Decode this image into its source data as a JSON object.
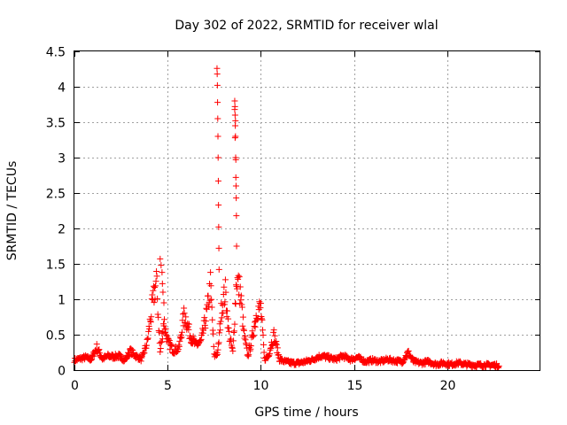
{
  "chart_data": {
    "type": "scatter",
    "title": "Day 302 of 2022, SRMTID for receiver wlal",
    "xlabel": "GPS time / hours",
    "ylabel": "SRMTID / TECUs",
    "xlim": [
      0,
      25
    ],
    "ylim": [
      0,
      4.5
    ],
    "xticks": [
      0,
      5,
      10,
      15,
      20
    ],
    "yticks": [
      0,
      0.5,
      1,
      1.5,
      2,
      2.5,
      3,
      3.5,
      4,
      4.5
    ],
    "ytick_labels": [
      "0",
      "0.5",
      "1",
      "1.5",
      "2",
      "2.5",
      "3",
      "3.5",
      "4",
      "4.5"
    ],
    "xtick_labels": [
      "0",
      "5",
      "10",
      "15",
      "20"
    ],
    "grid": true,
    "marker": "+",
    "color": "#ff0000",
    "profile": [
      [
        0.0,
        0.14
      ],
      [
        0.3,
        0.16
      ],
      [
        0.6,
        0.18
      ],
      [
        0.9,
        0.15
      ],
      [
        1.2,
        0.32
      ],
      [
        1.5,
        0.16
      ],
      [
        1.8,
        0.2
      ],
      [
        2.1,
        0.19
      ],
      [
        2.4,
        0.2
      ],
      [
        2.7,
        0.14
      ],
      [
        3.0,
        0.27
      ],
      [
        3.3,
        0.2
      ],
      [
        3.6,
        0.15
      ],
      [
        3.9,
        0.38
      ],
      [
        4.2,
        0.95
      ],
      [
        4.4,
        1.27
      ],
      [
        4.6,
        0.25
      ],
      [
        4.8,
        0.7
      ],
      [
        5.0,
        0.4
      ],
      [
        5.3,
        0.28
      ],
      [
        5.6,
        0.3
      ],
      [
        5.9,
        0.8
      ],
      [
        6.2,
        0.5
      ],
      [
        6.5,
        0.35
      ],
      [
        6.8,
        0.4
      ],
      [
        7.1,
        0.8
      ],
      [
        7.3,
        1.2
      ],
      [
        7.5,
        0.2
      ],
      [
        7.7,
        0.25
      ],
      [
        7.9,
        0.9
      ],
      [
        8.1,
        1.1
      ],
      [
        8.3,
        0.5
      ],
      [
        8.5,
        0.25
      ],
      [
        8.7,
        1.3
      ],
      [
        8.9,
        1.1
      ],
      [
        9.1,
        0.5
      ],
      [
        9.3,
        0.2
      ],
      [
        9.5,
        0.4
      ],
      [
        9.8,
        0.85
      ],
      [
        10.0,
        0.88
      ],
      [
        10.2,
        0.15
      ],
      [
        10.4,
        0.2
      ],
      [
        10.7,
        0.5
      ],
      [
        11.0,
        0.15
      ],
      [
        11.3,
        0.12
      ],
      [
        11.7,
        0.1
      ],
      [
        12.0,
        0.1
      ],
      [
        12.4,
        0.12
      ],
      [
        12.8,
        0.15
      ],
      [
        13.2,
        0.2
      ],
      [
        13.6,
        0.18
      ],
      [
        14.0,
        0.15
      ],
      [
        14.4,
        0.2
      ],
      [
        14.8,
        0.15
      ],
      [
        15.2,
        0.18
      ],
      [
        15.6,
        0.12
      ],
      [
        16.0,
        0.14
      ],
      [
        16.4,
        0.12
      ],
      [
        16.8,
        0.15
      ],
      [
        17.2,
        0.13
      ],
      [
        17.6,
        0.12
      ],
      [
        17.9,
        0.25
      ],
      [
        18.2,
        0.12
      ],
      [
        18.6,
        0.1
      ],
      [
        19.0,
        0.12
      ],
      [
        19.4,
        0.08
      ],
      [
        19.8,
        0.1
      ],
      [
        20.2,
        0.08
      ],
      [
        20.6,
        0.1
      ],
      [
        21.0,
        0.08
      ],
      [
        21.5,
        0.07
      ],
      [
        22.0,
        0.07
      ],
      [
        22.4,
        0.07
      ],
      [
        22.8,
        0.06
      ]
    ],
    "spikes": [
      [
        4.6,
        1.57
      ],
      [
        4.65,
        1.48
      ],
      [
        4.7,
        1.38
      ],
      [
        4.72,
        1.22
      ],
      [
        4.75,
        1.1
      ],
      [
        4.8,
        0.95
      ],
      [
        7.65,
        4.26
      ],
      [
        7.66,
        4.18
      ],
      [
        7.67,
        4.02
      ],
      [
        7.68,
        3.78
      ],
      [
        7.69,
        3.55
      ],
      [
        7.7,
        3.3
      ],
      [
        7.71,
        3.0
      ],
      [
        7.72,
        2.67
      ],
      [
        7.73,
        2.33
      ],
      [
        7.74,
        2.02
      ],
      [
        7.75,
        1.72
      ],
      [
        7.76,
        1.42
      ],
      [
        8.6,
        3.8
      ],
      [
        8.61,
        3.72
      ],
      [
        8.62,
        3.6
      ],
      [
        8.63,
        3.45
      ],
      [
        8.64,
        3.3
      ],
      [
        8.65,
        3.0
      ],
      [
        8.66,
        2.72
      ],
      [
        8.67,
        2.6
      ],
      [
        8.68,
        2.43
      ],
      [
        8.69,
        2.18
      ],
      [
        8.7,
        1.75
      ],
      [
        8.62,
        3.28
      ],
      [
        8.66,
        2.97
      ],
      [
        8.6,
        3.68
      ],
      [
        8.64,
        3.52
      ]
    ]
  }
}
